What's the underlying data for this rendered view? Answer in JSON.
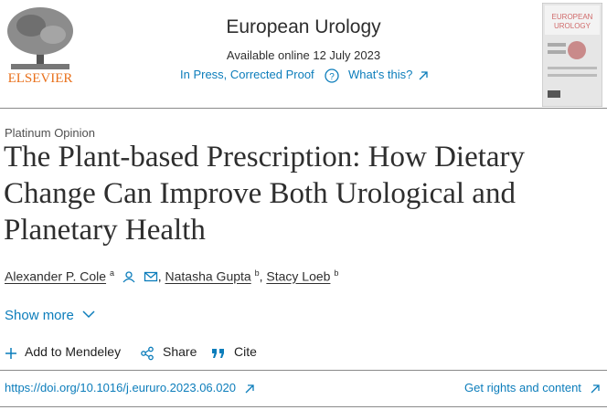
{
  "header": {
    "publisher": "ELSEVIER",
    "journal": "European Urology",
    "available": "Available online 12 July 2023",
    "status": "In Press, Corrected Proof",
    "whats_this": "What's this?",
    "cover_lines": [
      "EUROPEAN",
      "UROLOGY"
    ]
  },
  "article": {
    "type": "Platinum Opinion",
    "title": "The Plant-based Prescription: How Dietary Change Can Improve Both Urological and Planetary Health",
    "authors": [
      {
        "name": "Alexander P. Cole",
        "aff": "a"
      },
      {
        "name": "Natasha Gupta",
        "aff": "b"
      },
      {
        "name": "Stacy Loeb",
        "aff": "b"
      }
    ],
    "show_more": "Show more"
  },
  "actions": [
    "Add to Mendeley",
    "Share",
    "Cite"
  ],
  "footer": {
    "doi": "https://doi.org/10.1016/j.eururo.2023.06.020",
    "rights": "Get rights and content"
  }
}
